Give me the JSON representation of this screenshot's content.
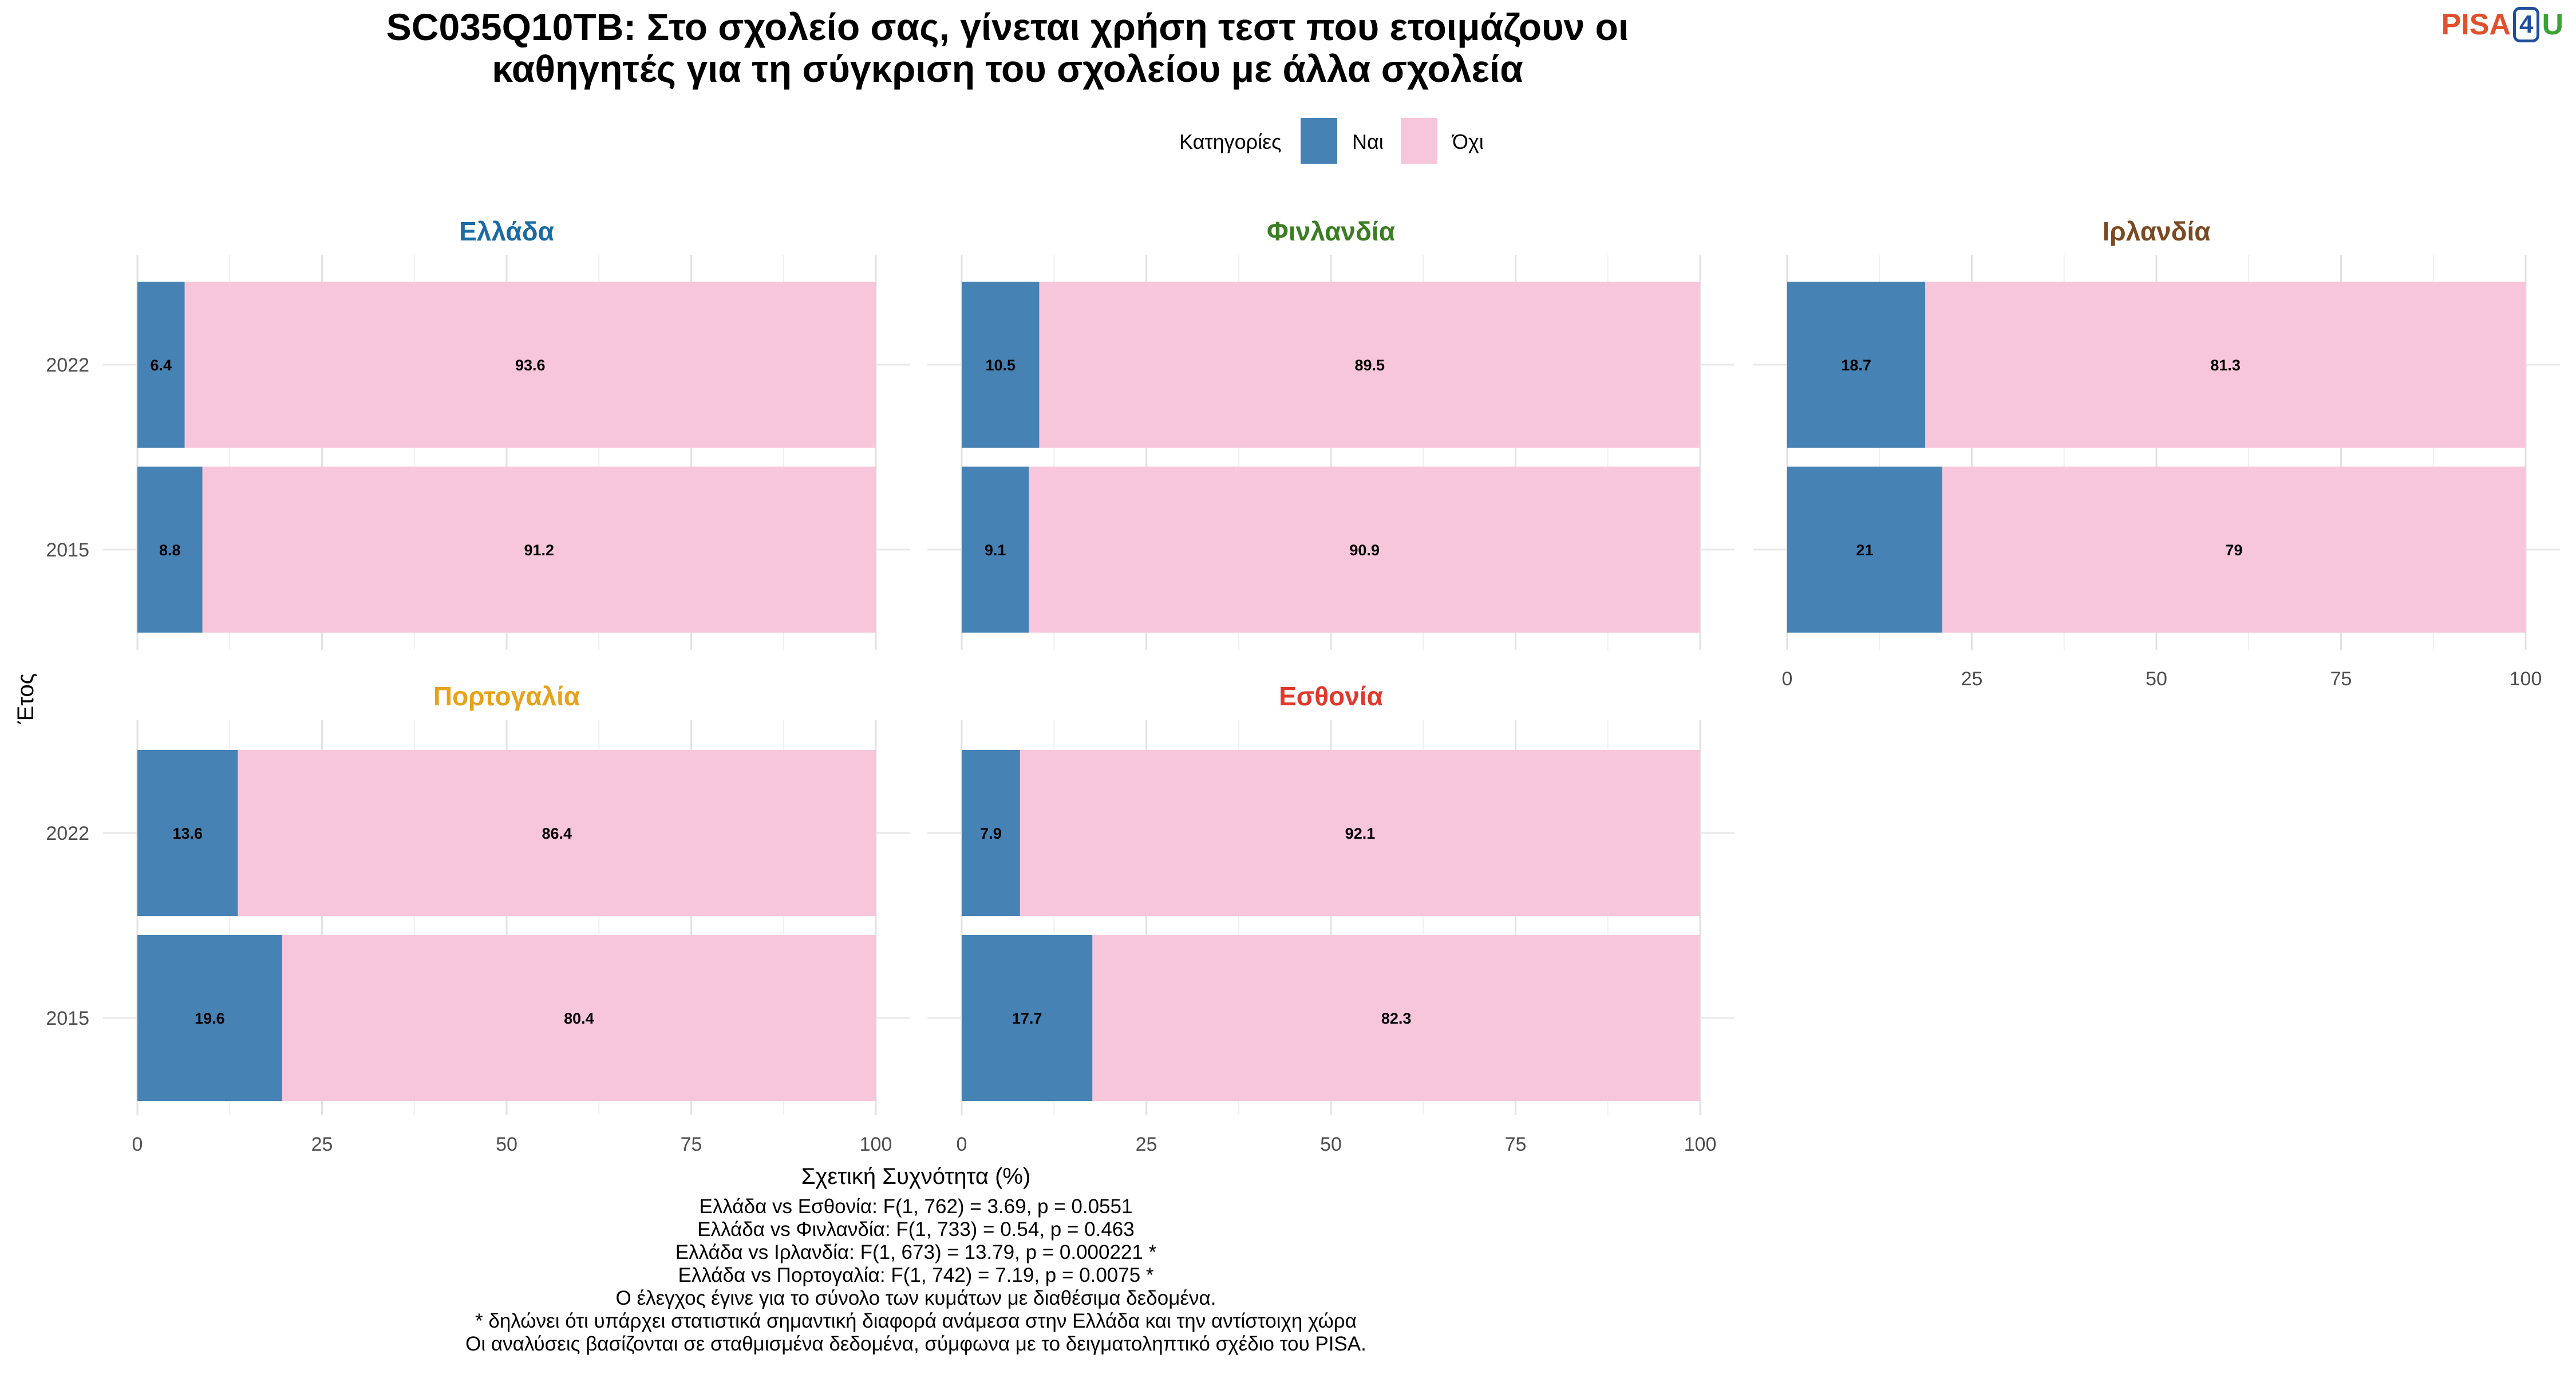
{
  "title_lines": [
    "SC035Q10TB: Στο σχολείο σας, γίνεται χρήση τεστ που ετοιμάζουν οι",
    "καθηγητές για τη σύγκριση του σχολείου με άλλα σχολεία"
  ],
  "logo": {
    "p1": "PISA",
    "p2": "4",
    "p3": "U"
  },
  "legend": {
    "title": "Κατηγορίες",
    "items": [
      {
        "label": "Ναι",
        "color": "#4682b4"
      },
      {
        "label": "Όχι",
        "color": "#f7c6da"
      }
    ]
  },
  "chart_data": {
    "type": "bar",
    "orientation": "horizontal",
    "stacked": true,
    "xlabel": "Σχετική Συχνότητα (%)",
    "ylabel": "Έτος",
    "xlim": [
      0,
      100
    ],
    "xticks": [
      "0",
      "25",
      "50",
      "75",
      "100"
    ],
    "categories": [
      "2015",
      "2022"
    ],
    "series_names": [
      "Ναι",
      "Όχι"
    ],
    "series_colors": [
      "#4682b4",
      "#f7c6da"
    ],
    "panels": [
      {
        "name": "Ελλάδα",
        "color": "#1a6aa5",
        "values": {
          "2022": [
            6.4,
            93.6
          ],
          "2015": [
            8.8,
            91.2
          ]
        },
        "labels": {
          "2022": [
            "6.4",
            "93.6"
          ],
          "2015": [
            "8.8",
            "91.2"
          ]
        }
      },
      {
        "name": "Φινλανδία",
        "color": "#3a7d23",
        "values": {
          "2022": [
            10.5,
            89.5
          ],
          "2015": [
            9.1,
            90.9
          ]
        },
        "labels": {
          "2022": [
            "10.5",
            "89.5"
          ],
          "2015": [
            "9.1",
            "90.9"
          ]
        }
      },
      {
        "name": "Ιρλανδία",
        "color": "#7a4a22",
        "values": {
          "2022": [
            18.7,
            81.3
          ],
          "2015": [
            21,
            79
          ]
        },
        "labels": {
          "2022": [
            "18.7",
            "81.3"
          ],
          "2015": [
            "21",
            "79"
          ]
        }
      },
      {
        "name": "Πορτογαλία",
        "color": "#e6a21a",
        "values": {
          "2022": [
            13.6,
            86.4
          ],
          "2015": [
            19.6,
            80.4
          ]
        },
        "labels": {
          "2022": [
            "13.6",
            "86.4"
          ],
          "2015": [
            "19.6",
            "80.4"
          ]
        }
      },
      {
        "name": "Εσθονία",
        "color": "#e0392c",
        "values": {
          "2022": [
            7.9,
            92.1
          ],
          "2015": [
            17.7,
            82.3
          ]
        },
        "labels": {
          "2022": [
            "7.9",
            "92.1"
          ],
          "2015": [
            "17.7",
            "82.3"
          ]
        }
      }
    ]
  },
  "notes": [
    "Ελλάδα vs Εσθονία: F(1, 762) = 3.69, p = 0.0551",
    "Ελλάδα vs Φινλανδία: F(1, 733) = 0.54, p = 0.463",
    "Ελλάδα vs Ιρλανδία: F(1, 673) = 13.79, p = 0.000221 *",
    "Ελλάδα vs Πορτογαλία: F(1, 742) = 7.19, p = 0.0075 *",
    "Ο έλεγχος έγινε για το σύνολο των κυμάτων με διαθέσιμα δεδομένα.",
    "* δηλώνει ότι υπάρχει στατιστικά σημαντική διαφορά ανάμεσα στην Ελλάδα και την αντίστοιχη χώρα",
    "Οι αναλύσεις βασίζονται σε σταθμισμένα δεδομένα, σύμφωνα με το δειγματοληπτικό σχέδιο του PISA."
  ]
}
